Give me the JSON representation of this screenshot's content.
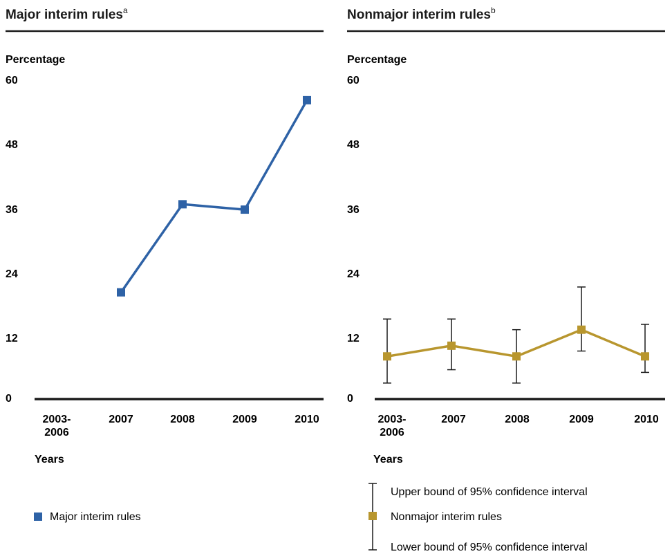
{
  "chart_data": [
    {
      "type": "line",
      "title": "Major interim rules",
      "title_superscript": "a",
      "ylabel": "Percentage",
      "xlabel": "Years",
      "ylim": [
        0,
        60
      ],
      "yticks": [
        "0",
        "12",
        "24",
        "36",
        "48",
        "60"
      ],
      "categories": [
        "2003-2006",
        "2007",
        "2008",
        "2009",
        "2010"
      ],
      "category_lines": [
        [
          "2003-",
          "2006"
        ],
        [
          "2007"
        ],
        [
          "2008"
        ],
        [
          "2009"
        ],
        [
          "2010"
        ]
      ],
      "grid": false,
      "legend_position": "bottom-left",
      "series": [
        {
          "name": "Major interim rules",
          "color": "#2e62a6",
          "values": [
            null,
            20,
            36.5,
            35.5,
            56
          ]
        }
      ]
    },
    {
      "type": "line",
      "title": "Nonmajor interim rules",
      "title_superscript": "b",
      "ylabel": "Percentage",
      "xlabel": "Years",
      "ylim": [
        0,
        60
      ],
      "yticks": [
        "0",
        "12",
        "24",
        "36",
        "48",
        "60"
      ],
      "categories": [
        "2003-2006",
        "2007",
        "2008",
        "2009",
        "2010"
      ],
      "category_lines": [
        [
          "2003-",
          "2006"
        ],
        [
          "2007"
        ],
        [
          "2008"
        ],
        [
          "2009"
        ],
        [
          "2010"
        ]
      ],
      "grid": false,
      "legend_position": "bottom-left",
      "series": [
        {
          "name": "Nonmajor interim rules",
          "color": "#b8962e",
          "values": [
            8,
            10,
            8,
            13,
            8
          ],
          "ci_upper": [
            15,
            15,
            13,
            21,
            14
          ],
          "ci_lower": [
            3,
            5.5,
            3,
            9,
            5
          ]
        }
      ],
      "legend": {
        "upper": "Upper bound of 95% confidence interval",
        "series": "Nonmajor interim rules",
        "lower": "Lower bound of 95% confidence interval"
      }
    }
  ]
}
